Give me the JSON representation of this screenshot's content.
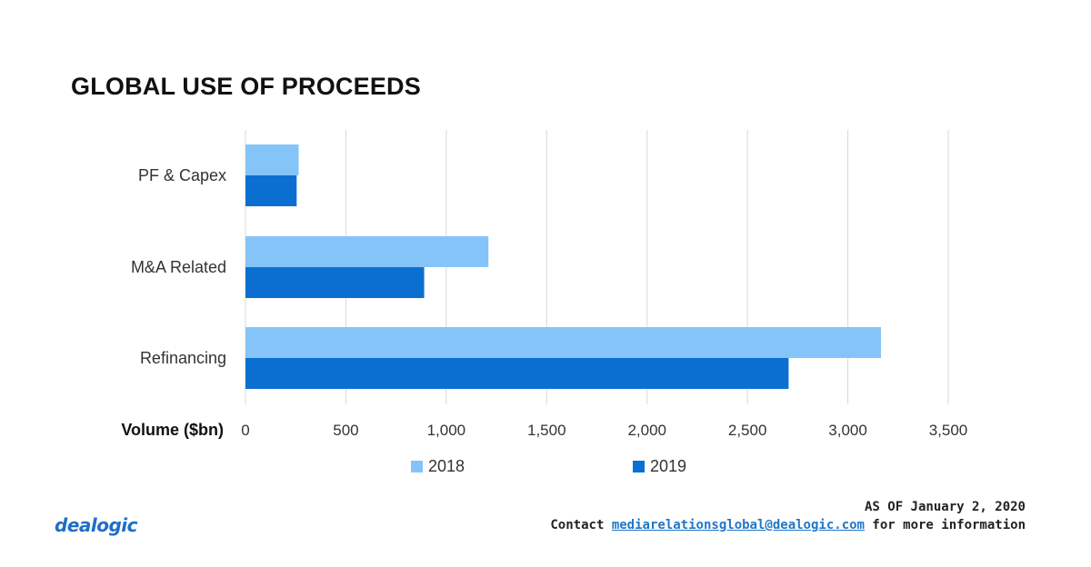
{
  "title": "GLOBAL USE OF PROCEEDS",
  "footer": {
    "as_of": "AS OF January 2, 2020",
    "contact_prefix": "Contact",
    "email": "mediarelationsglobal@dealogic.com",
    "contact_suffix": "for more information"
  },
  "logo_text": "dealogic",
  "colors": {
    "series_2018": "#85c4f8",
    "series_2019": "#0a6fd1",
    "gridline": "#d9d9d9"
  },
  "chart_data": {
    "type": "bar",
    "orientation": "horizontal",
    "title": "GLOBAL USE OF PROCEEDS",
    "xlabel": "Volume ($bn)",
    "ylabel": "",
    "categories": [
      "PF & Capex",
      "M&A Related",
      "Refinancing"
    ],
    "series": [
      {
        "name": "2018",
        "values": [
          265,
          1210,
          3165
        ]
      },
      {
        "name": "2019",
        "values": [
          255,
          890,
          2705
        ]
      }
    ],
    "xlim": [
      0,
      3500
    ],
    "ticks": [
      "0",
      "500",
      "1,000",
      "1,500",
      "2,000",
      "2,500",
      "3,000",
      "3,500"
    ],
    "tick_values": [
      0,
      500,
      1000,
      1500,
      2000,
      2500,
      3000,
      3500
    ],
    "grid": true,
    "legend_position": "bottom"
  }
}
